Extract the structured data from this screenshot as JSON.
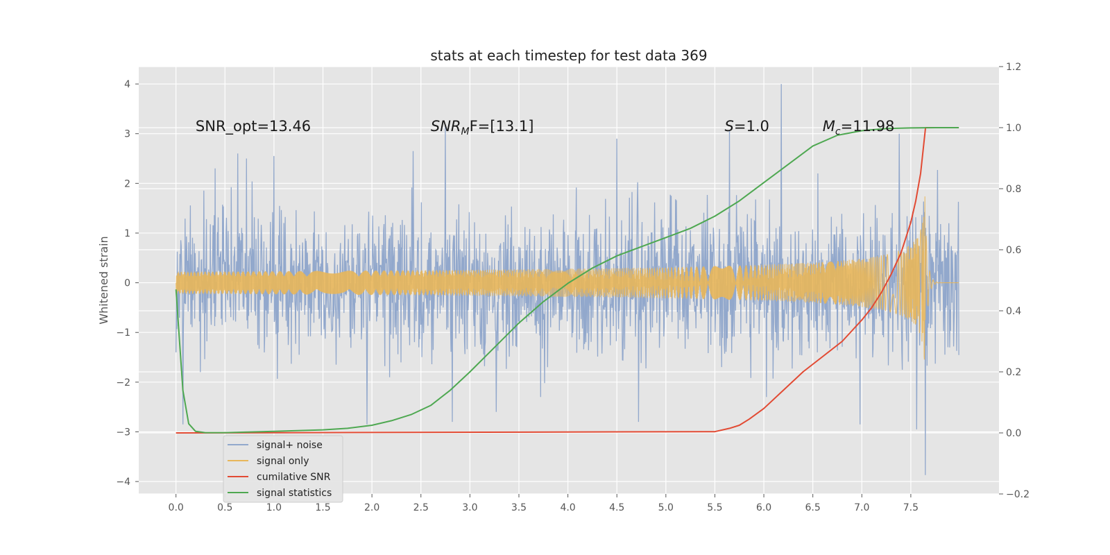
{
  "chart_data": {
    "type": "line",
    "title": "stats at each timestep for test data 369",
    "xlabel": "",
    "ylabel": "Whitened strain",
    "y2label": "",
    "xlim": [
      -0.38,
      8.4
    ],
    "ylim": [
      -4.25,
      4.35
    ],
    "y2lim": [
      -0.2,
      1.2
    ],
    "x_ticks": [
      0.0,
      0.5,
      1.0,
      1.5,
      2.0,
      2.5,
      3.0,
      3.5,
      4.0,
      4.5,
      5.0,
      5.5,
      6.0,
      6.5,
      7.0,
      7.5
    ],
    "x_tick_labels": [
      "0.0",
      "0.5",
      "1.0",
      "1.5",
      "2.0",
      "2.5",
      "3.0",
      "3.5",
      "4.0",
      "4.5",
      "5.0",
      "5.5",
      "6.0",
      "6.5",
      "7.0",
      "7.5"
    ],
    "y_ticks": [
      -4,
      -3,
      -2,
      -1,
      0,
      1,
      2,
      3,
      4
    ],
    "y_tick_labels": [
      "−4",
      "−3",
      "−2",
      "−1",
      "0",
      "1",
      "2",
      "3",
      "4"
    ],
    "y2_ticks": [
      -0.2,
      0.0,
      0.2,
      0.4,
      0.6,
      0.8,
      1.0,
      1.2
    ],
    "y2_tick_labels": [
      "−0.2",
      "0.0",
      "0.2",
      "0.4",
      "0.6",
      "0.8",
      "1.0",
      "1.2"
    ],
    "grid": true,
    "legend_position": "lower-left",
    "annotations": [
      {
        "text": "SNR_opt=13.46",
        "x": 0.2,
        "y": 3.15
      },
      {
        "main": "SNR",
        "sub": "M",
        "rest": "F=[13.1]",
        "x": 2.6,
        "y": 3.15
      },
      {
        "main": "S",
        "sub": "",
        "rest": "=1.0",
        "x": 5.6,
        "y": 3.15
      },
      {
        "main": "M",
        "sub": "c",
        "rest": "=11.98",
        "x": 6.6,
        "y": 3.15
      }
    ],
    "series": [
      {
        "name": "signal+ noise",
        "axis": "left",
        "color": "#92a8cc",
        "kind": "noise",
        "x_range": [
          0.0,
          7.99
        ],
        "envelope": 1.8,
        "peaks": [
          [
            0.0,
            -1.4
          ],
          [
            0.07,
            -2.85
          ],
          [
            0.4,
            2.3
          ],
          [
            0.63,
            2.6
          ],
          [
            0.72,
            2.5
          ],
          [
            1.0,
            2.55
          ],
          [
            1.95,
            -2.85
          ],
          [
            2.18,
            -1.9
          ],
          [
            2.42,
            2.65
          ],
          [
            2.75,
            3.15
          ],
          [
            2.82,
            -2.8
          ],
          [
            3.27,
            -2.6
          ],
          [
            3.72,
            -2.3
          ],
          [
            4.5,
            2.9
          ],
          [
            4.72,
            -2.8
          ],
          [
            5.65,
            3.05
          ],
          [
            6.18,
            4.0
          ],
          [
            6.55,
            2.2
          ],
          [
            6.98,
            -2.85
          ],
          [
            7.38,
            3.0
          ],
          [
            7.56,
            -2.95
          ],
          [
            7.65,
            -3.87
          ]
        ]
      },
      {
        "name": "signal only",
        "axis": "left",
        "color": "#e8b65a",
        "kind": "chirp",
        "x_range": [
          0.0,
          7.99
        ],
        "merger_time": 7.65,
        "peak_amplitude": 2.2
      },
      {
        "name": "cumilative SNR",
        "axis": "right",
        "color": "#e24a33",
        "x": [
          0.0,
          5.5,
          5.65,
          5.75,
          5.85,
          6.0,
          6.2,
          6.4,
          6.6,
          6.8,
          7.0,
          7.1,
          7.2,
          7.3,
          7.4,
          7.5,
          7.55,
          7.6,
          7.65,
          7.99
        ],
        "y": [
          0.0,
          0.004,
          0.015,
          0.025,
          0.045,
          0.08,
          0.14,
          0.2,
          0.25,
          0.3,
          0.37,
          0.41,
          0.46,
          0.52,
          0.59,
          0.69,
          0.76,
          0.85,
          1.0,
          1.0
        ]
      },
      {
        "name": "signal statistics",
        "axis": "right",
        "color": "#4ea851",
        "x": [
          0.0,
          0.07,
          0.13,
          0.2,
          0.3,
          0.5,
          1.0,
          1.5,
          1.75,
          2.0,
          2.2,
          2.4,
          2.6,
          2.8,
          3.0,
          3.25,
          3.5,
          3.75,
          4.0,
          4.25,
          4.5,
          4.75,
          5.0,
          5.25,
          5.5,
          5.75,
          6.0,
          6.25,
          6.5,
          6.75,
          7.0,
          7.25,
          7.5,
          7.75,
          7.99
        ],
        "y": [
          0.47,
          0.14,
          0.03,
          0.005,
          0.001,
          0.001,
          0.005,
          0.01,
          0.015,
          0.025,
          0.04,
          0.06,
          0.09,
          0.14,
          0.2,
          0.28,
          0.36,
          0.43,
          0.49,
          0.54,
          0.58,
          0.61,
          0.64,
          0.67,
          0.71,
          0.76,
          0.82,
          0.88,
          0.94,
          0.975,
          0.99,
          0.997,
          0.999,
          1.0,
          1.0
        ]
      }
    ]
  }
}
